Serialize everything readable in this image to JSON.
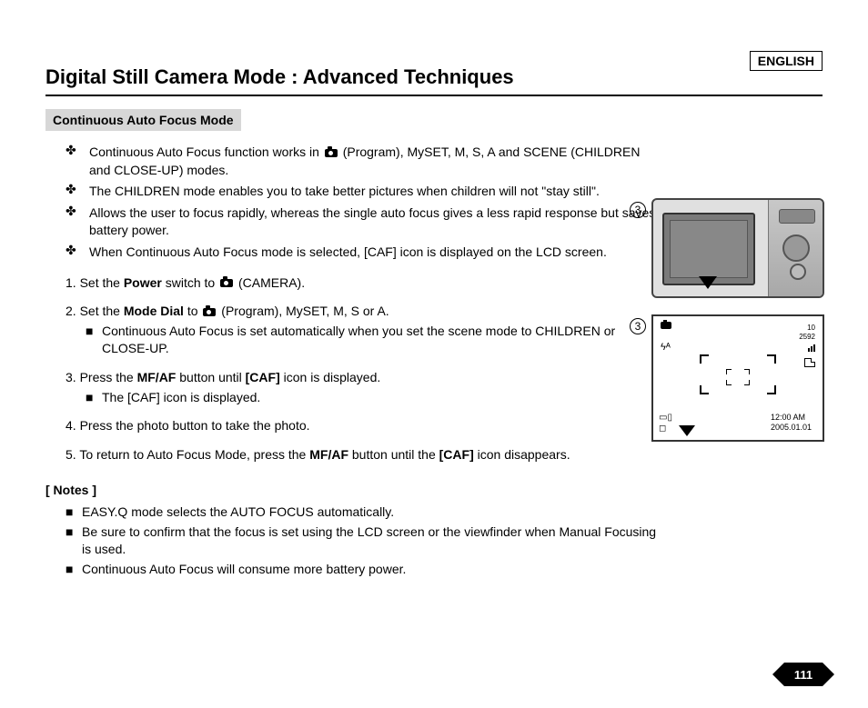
{
  "language": "ENGLISH",
  "title": "Digital Still Camera Mode : Advanced Techniques",
  "subhead": "Continuous Auto Focus Mode",
  "bullets": [
    "Continuous Auto Focus function works in ⟨cam⟩ (Program), MySET, M, S, A and SCENE (CHILDREN and  CLOSE-UP) modes.",
    "The CHILDREN mode enables you to take better pictures when children will not \"stay still\".",
    "Allows the user to focus rapidly, whereas the single auto focus gives a less rapid response but saves battery power.",
    "When Continuous Auto Focus mode is selected, [CAF] icon is displayed on the LCD screen."
  ],
  "steps": {
    "s1": {
      "prefix": "1.  Set the ",
      "b1": "Power",
      "suffix": " switch to ⟨cam⟩ (CAMERA)."
    },
    "s2": {
      "prefix": "2.  Set the ",
      "b1": "Mode Dial",
      "mid": " to  ⟨cam⟩ (Program), MySET, M, S or A.",
      "sub": "Continuous Auto Focus is set automatically when you set the scene mode to CHILDREN or CLOSE-UP."
    },
    "s3": {
      "prefix": "3.  Press the ",
      "b1": "MF/AF",
      "mid": " button until ",
      "b2": "[CAF]",
      "suffix": " icon is displayed.",
      "sub": "The [CAF] icon is displayed."
    },
    "s4": {
      "text": "4. Press the photo button to take the photo."
    },
    "s5": {
      "prefix": "5.  To return to Auto Focus Mode, press the ",
      "b1": "MF/AF",
      "mid": " button until the ",
      "b2": "[CAF]",
      "suffix": " icon disappears."
    }
  },
  "notes_head": "[ Notes ]",
  "notes": [
    "EASY.Q mode selects the AUTO FOCUS automatically.",
    "Be sure to confirm that the focus is set using the LCD screen or the viewfinder when Manual Focusing is used.",
    "Continuous Auto Focus will consume more battery power."
  ],
  "fig": {
    "num1": "3",
    "num2": "3",
    "lcd_count": "10",
    "lcd_res": "2592",
    "lcd_flash": "ϟᴬ",
    "lcd_time": "12:00 AM",
    "lcd_date": "2005.01.01"
  },
  "page_number": "111"
}
